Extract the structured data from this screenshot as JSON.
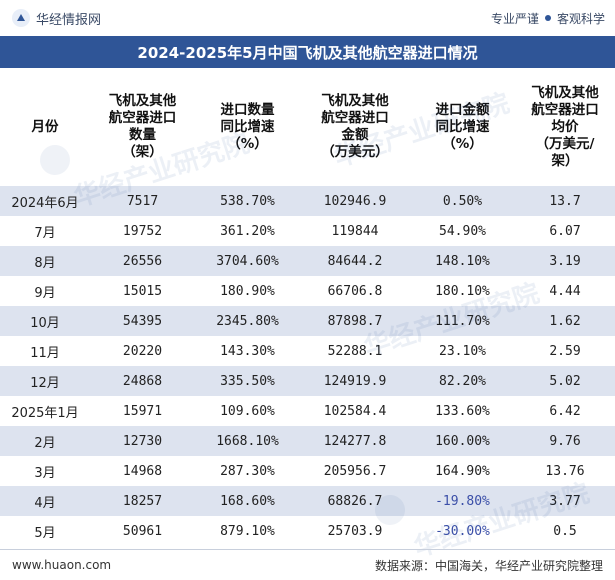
{
  "header": {
    "brand": "华经情报网",
    "tagline_left": "专业严谨",
    "tagline_right": "客观科学"
  },
  "title": "2024-2025年5月中国飞机及其他航空器进口情况",
  "columns": [
    "月份",
    "飞机及其他\n航空器进口\n数量\n（架）",
    "进口数量\n同比增速\n（%）",
    "飞机及其他\n航空器进口\n金额\n（万美元）",
    "进口金额\n同比增速\n（%）",
    "飞机及其他\n航空器进口\n均价\n（万美元/\n架）"
  ],
  "rows": [
    {
      "month": "2024年6月",
      "qty": "7517",
      "qty_growth": "538.70%",
      "amount": "102946.9",
      "amount_growth": "0.50%",
      "price": "13.7"
    },
    {
      "month": "7月",
      "qty": "19752",
      "qty_growth": "361.20%",
      "amount": "119844",
      "amount_growth": "54.90%",
      "price": "6.07"
    },
    {
      "month": "8月",
      "qty": "26556",
      "qty_growth": "3704.60%",
      "amount": "84644.2",
      "amount_growth": "148.10%",
      "price": "3.19"
    },
    {
      "month": "9月",
      "qty": "15015",
      "qty_growth": "180.90%",
      "amount": "66706.8",
      "amount_growth": "180.10%",
      "price": "4.44"
    },
    {
      "month": "10月",
      "qty": "54395",
      "qty_growth": "2345.80%",
      "amount": "87898.7",
      "amount_growth": "111.70%",
      "price": "1.62"
    },
    {
      "month": "11月",
      "qty": "20220",
      "qty_growth": "143.30%",
      "amount": "52288.1",
      "amount_growth": "23.10%",
      "price": "2.59"
    },
    {
      "month": "12月",
      "qty": "24868",
      "qty_growth": "335.50%",
      "amount": "124919.9",
      "amount_growth": "82.20%",
      "price": "5.02"
    },
    {
      "month": "2025年1月",
      "qty": "15971",
      "qty_growth": "109.60%",
      "amount": "102584.4",
      "amount_growth": "133.60%",
      "price": "6.42"
    },
    {
      "month": "2月",
      "qty": "12730",
      "qty_growth": "1668.10%",
      "amount": "124277.8",
      "amount_growth": "160.00%",
      "price": "9.76"
    },
    {
      "month": "3月",
      "qty": "14968",
      "qty_growth": "287.30%",
      "amount": "205956.7",
      "amount_growth": "164.90%",
      "price": "13.76"
    },
    {
      "month": "4月",
      "qty": "18257",
      "qty_growth": "168.60%",
      "amount": "68826.7",
      "amount_growth": "-19.80%",
      "price": "3.77"
    },
    {
      "month": "5月",
      "qty": "50961",
      "qty_growth": "879.10%",
      "amount": "25703.9",
      "amount_growth": "-30.00%",
      "price": "0.5"
    }
  ],
  "footer": {
    "url": "www.huaon.com",
    "source": "数据来源：中国海关，华经产业研究院整理"
  },
  "watermarks": [
    "华经产业研究院",
    "华经产业研究院",
    "华经产业研究院",
    "华经产业研究院"
  ],
  "colors": {
    "title_bg": "#2f5597",
    "stripe": "#dde3ef",
    "negative_text": "#3b4fa8"
  }
}
